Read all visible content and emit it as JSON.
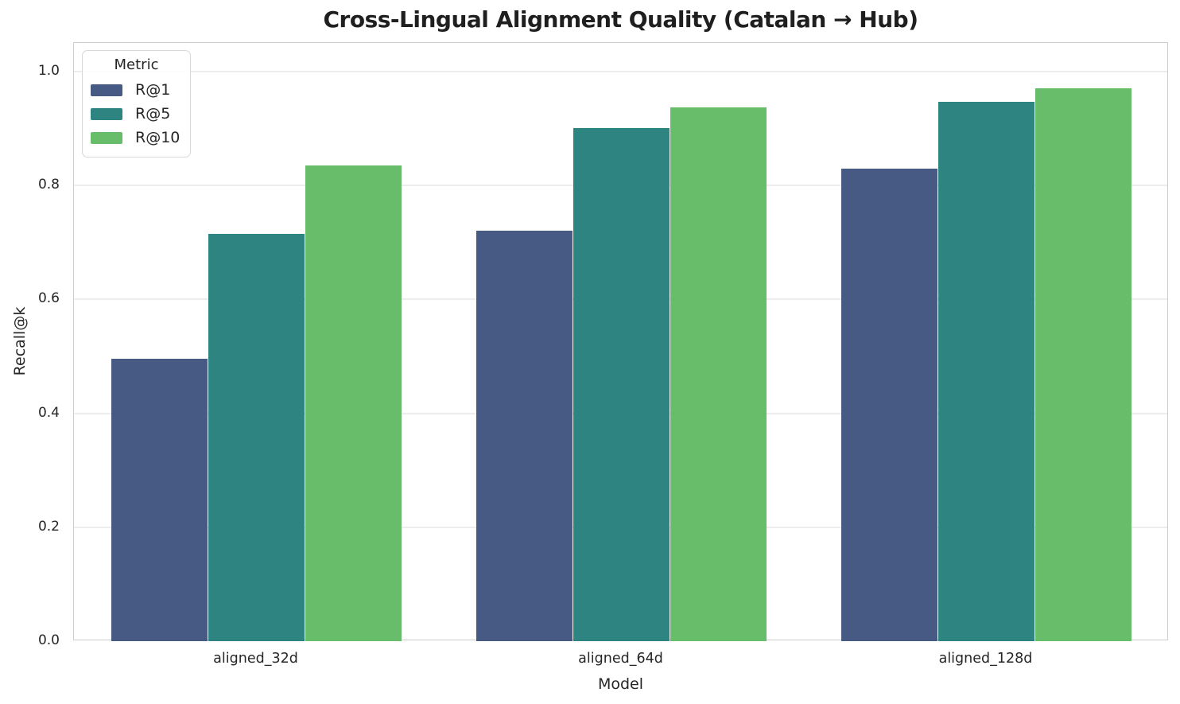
{
  "chart_data": {
    "type": "bar",
    "title": "Cross-Lingual Alignment Quality (Catalan → Hub)",
    "xlabel": "Model",
    "ylabel": "Recall@k",
    "categories": [
      "aligned_32d",
      "aligned_64d",
      "aligned_128d"
    ],
    "series": [
      {
        "name": "R@1",
        "color": "#475a83",
        "values": [
          0.495,
          0.72,
          0.83
        ]
      },
      {
        "name": "R@5",
        "color": "#2e8480",
        "values": [
          0.715,
          0.9,
          0.946
        ]
      },
      {
        "name": "R@10",
        "color": "#68bd6a",
        "values": [
          0.835,
          0.937,
          0.97
        ]
      }
    ],
    "ylim": [
      0,
      1.05
    ],
    "yticks": [
      0.0,
      0.2,
      0.4,
      0.6,
      0.8,
      1.0
    ],
    "ytick_labels": [
      "0.0",
      "0.2",
      "0.4",
      "0.6",
      "0.8",
      "1.0"
    ],
    "legend_title": "Metric",
    "legend_position": "upper left",
    "grid": true,
    "colors": {
      "grid": "#ededed",
      "spine": "#cdcdcd",
      "text": "#262626"
    }
  }
}
